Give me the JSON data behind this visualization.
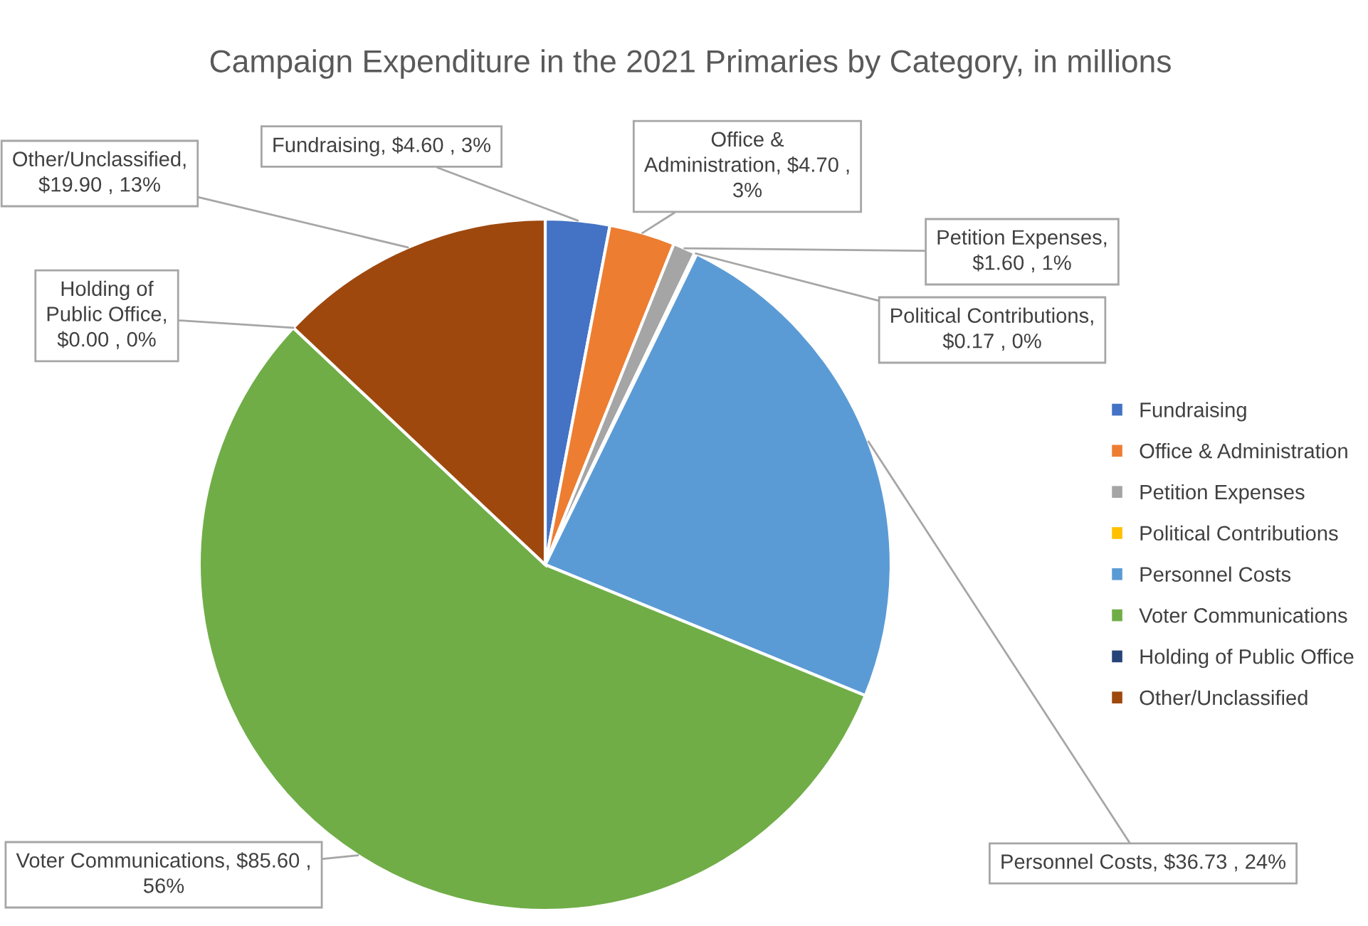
{
  "chart_data": {
    "type": "pie",
    "title": "Campaign Expenditure in the 2021 Primaries by Category, in millions",
    "categories": [
      "Fundraising",
      "Office & Administration",
      "Petition Expenses",
      "Political Contributions",
      "Personnel Costs",
      "Voter Communications",
      "Holding of Public Office",
      "Other/Unclassified"
    ],
    "values": [
      4.6,
      4.7,
      1.6,
      0.17,
      36.73,
      85.6,
      0.0,
      19.9
    ],
    "colors": [
      "#4472c4",
      "#ed7d31",
      "#a5a5a5",
      "#ffc000",
      "#5b9bd5",
      "#70ad47",
      "#264478",
      "#9e480e"
    ],
    "value_labels": [
      "Fundraising, $4.60 , 3%",
      "Office &\nAdministration, $4.70 ,\n3%",
      "Petition Expenses,\n$1.60 , 1%",
      "Political Contributions,\n$0.17 , 0%",
      "Personnel Costs, $36.73 , 24%",
      "Voter Communications, $85.60 ,\n56%",
      "Holding of\nPublic Office,\n$0.00 , 0%",
      "Other/Unclassified,\n$19.90 , 13%"
    ],
    "legend": "right"
  }
}
